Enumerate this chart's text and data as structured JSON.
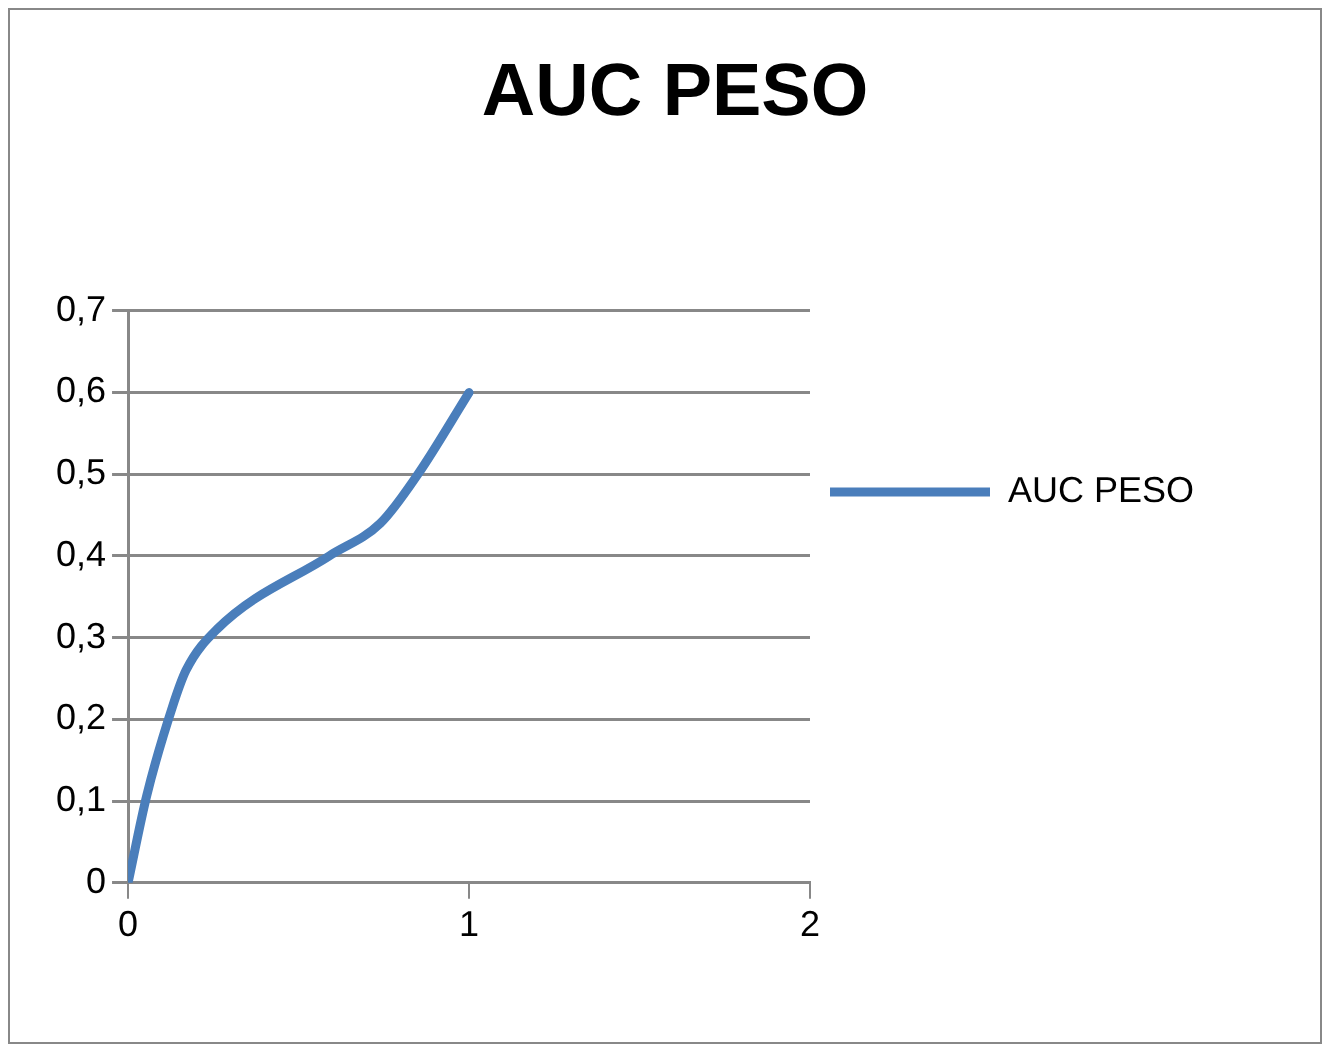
{
  "chart_data": {
    "type": "line",
    "title": "AUC PESO",
    "series": [
      {
        "name": "AUC PESO",
        "color": "#4a7ebb",
        "x": [
          0,
          0.055,
          0.13,
          0.17,
          0.26,
          0.59,
          0.74,
          0.85,
          1
        ],
        "values": [
          0,
          0.107,
          0.215,
          0.26,
          0.31,
          0.4,
          0.44,
          0.5,
          0.6
        ]
      }
    ],
    "xlim": [
      0,
      2
    ],
    "xticks": [
      0,
      1,
      2
    ],
    "ylim": [
      0,
      0.7
    ],
    "yticks": [
      {
        "value": 0,
        "label": "0"
      },
      {
        "value": 0.1,
        "label": "0,1"
      },
      {
        "value": 0.2,
        "label": "0,2"
      },
      {
        "value": 0.3,
        "label": "0,3"
      },
      {
        "value": 0.4,
        "label": "0,4"
      },
      {
        "value": 0.5,
        "label": "0,5"
      },
      {
        "value": 0.6,
        "label": "0,6"
      },
      {
        "value": 0.7,
        "label": "0,7"
      }
    ],
    "grid": "y",
    "legend": "right",
    "marker": "none",
    "line_style": "solid"
  }
}
